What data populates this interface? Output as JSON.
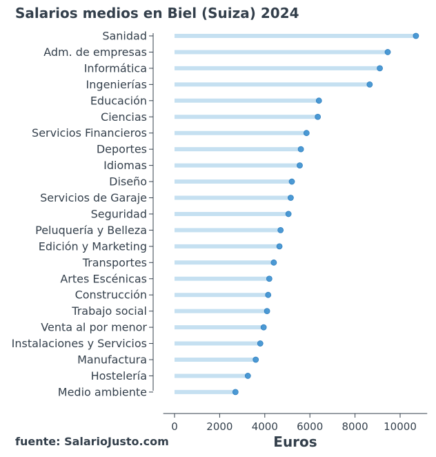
{
  "chart_data": {
    "type": "lollipop",
    "title": "Salarios medios en Biel (Suiza) 2024",
    "xlabel": "Euros",
    "ylabel": "",
    "source": "fuente: SalarioJusto.com",
    "xlim": [
      -500,
      11200
    ],
    "xticks": [
      0,
      2000,
      4000,
      6000,
      8000,
      10000
    ],
    "categories": [
      "Sanidad",
      "Adm. de empresas",
      "Informática",
      "Ingenierías",
      "Educación",
      "Ciencias",
      "Servicios Financieros",
      "Deportes",
      "Idiomas",
      "Diseño",
      "Servicios de Garaje",
      "Seguridad",
      "Peluquería y Belleza",
      "Edición y Marketing",
      "Transportes",
      "Artes Escénicas",
      "Construcción",
      "Trabajo social",
      "Venta al por menor",
      "Instalaciones y Servicios",
      "Manufactura",
      "Hostelería",
      "Medio ambiente"
    ],
    "values": [
      10700,
      9450,
      9100,
      8650,
      6400,
      6350,
      5850,
      5600,
      5550,
      5200,
      5150,
      5050,
      4700,
      4650,
      4400,
      4200,
      4150,
      4100,
      3950,
      3800,
      3600,
      3250,
      2700
    ],
    "colors": {
      "stem": "#c5e0f1",
      "dot": "#3a8fcf",
      "text": "#333f4b",
      "axis": "#333f4b"
    },
    "grid": false
  }
}
